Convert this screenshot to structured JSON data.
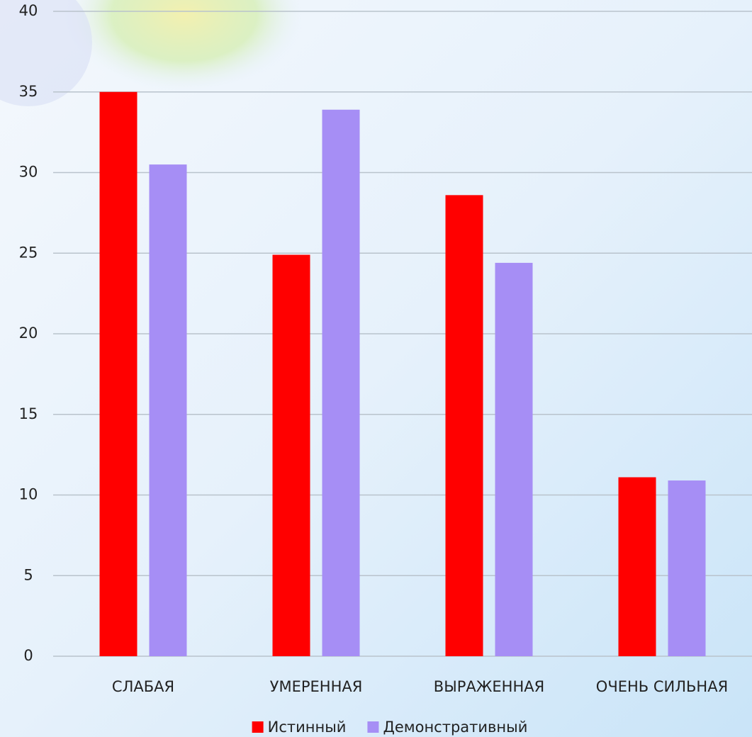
{
  "chart_data": {
    "type": "bar",
    "categories": [
      "СЛАБАЯ",
      "УМЕРЕННАЯ",
      "ВЫРАЖЕННАЯ",
      "ОЧЕНЬ СИЛЬНАЯ"
    ],
    "series": [
      {
        "name": "Истинный",
        "color": "#ff0000",
        "values": [
          35,
          24.9,
          28.6,
          11.1
        ]
      },
      {
        "name": "Демонстративный",
        "color": "#a68ef5",
        "values": [
          30.5,
          33.9,
          24.4,
          10.9
        ]
      }
    ],
    "ylim": [
      0,
      40
    ],
    "yticks": [
      0,
      5,
      10,
      15,
      20,
      25,
      30,
      35,
      40
    ],
    "grid": true,
    "legend": "bottom"
  }
}
